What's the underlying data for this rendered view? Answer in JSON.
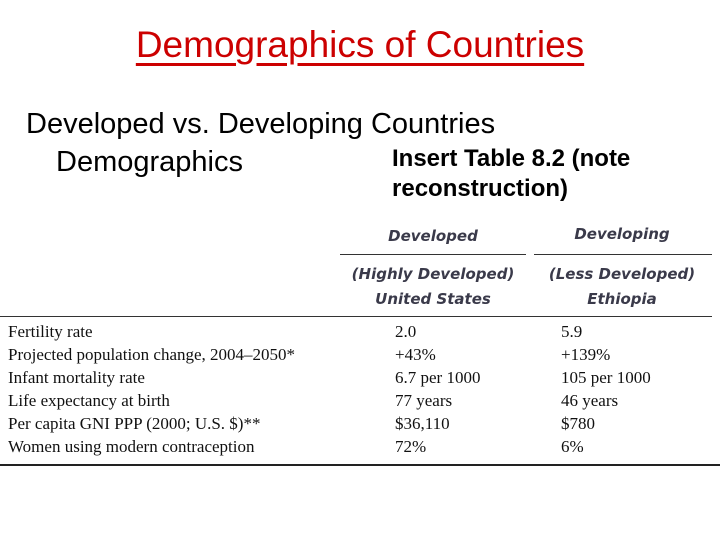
{
  "slide": {
    "title": "Demographics of Countries",
    "subtitle_line1": "Developed vs. Developing Countries",
    "subtitle_line2": "Demographics",
    "note_line1": "Insert Table 8.2 (note",
    "note_line2": "reconstruction)"
  },
  "table": {
    "group_developed": "Developed",
    "group_developing": "Developing",
    "developed_sub1": "(Highly Developed)",
    "developed_sub2": "United States",
    "developing_sub1": "(Less Developed)",
    "developing_sub2": "Ethiopia",
    "rows": [
      {
        "label": "Fertility rate",
        "developed": "2.0",
        "developing": "5.9"
      },
      {
        "label": "Projected population change, 2004–2050*",
        "developed": "+43%",
        "developing": "+139%"
      },
      {
        "label": "Infant mortality rate",
        "developed": "6.7 per 1000",
        "developing": "105 per 1000"
      },
      {
        "label": "Life expectancy at birth",
        "developed": "77 years",
        "developing": "46 years"
      },
      {
        "label": "Per capita GNI PPP (2000; U.S. $)**",
        "developed": "$36,110",
        "developing": "$780"
      },
      {
        "label": "Women using modern contraception",
        "developed": "72%",
        "developing": "6%"
      }
    ]
  }
}
